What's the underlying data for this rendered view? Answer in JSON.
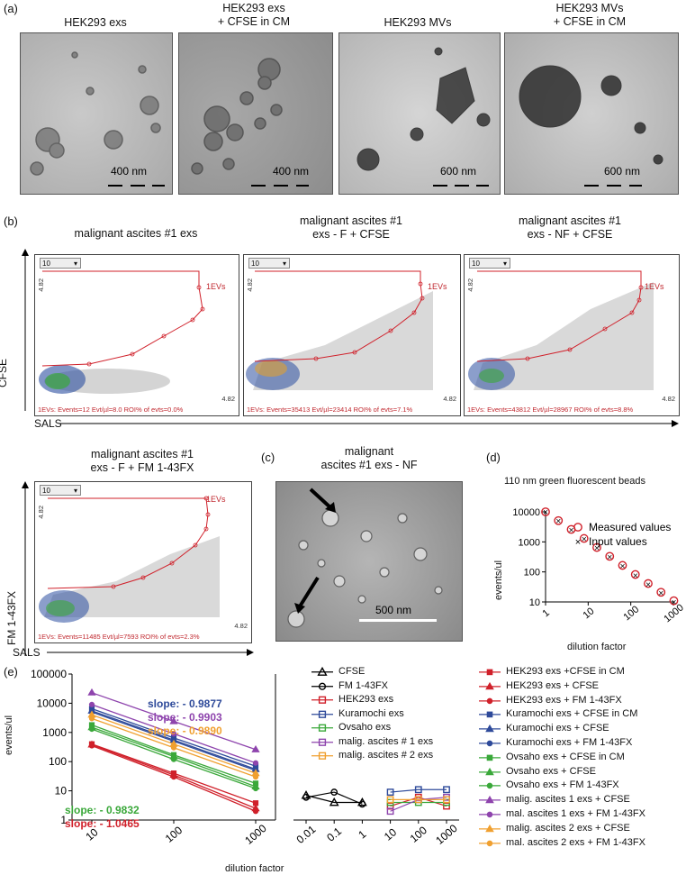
{
  "panel_a": {
    "letter": "(a)",
    "images": [
      {
        "title": [
          "HEK293 exs"
        ],
        "scale": "400 nm"
      },
      {
        "title": [
          "HEK293 exs",
          "+ CFSE in CM"
        ],
        "scale": "400 nm"
      },
      {
        "title": [
          "HEK293 MVs"
        ],
        "scale": "600 nm"
      },
      {
        "title": [
          "HEK293 MVs",
          "+ CFSE in CM"
        ],
        "scale": "600 nm"
      }
    ]
  },
  "panel_b": {
    "letter": "(b)",
    "y_axis": "CFSE",
    "x_axis": "SALS",
    "plots": [
      {
        "title": [
          "malignant ascites #1 exs"
        ],
        "dropdown": "10",
        "tick_top": "4.82",
        "tick_right": "4.82",
        "gate": "1EVs",
        "footer": "1EVs: Events=12   Evt/µl=8.0   ROI% of evts=0.0%"
      },
      {
        "title": [
          "malignant ascites #1",
          "exs - F + CFSE"
        ],
        "dropdown": "10",
        "tick_top": "4.82",
        "tick_right": "4.82",
        "gate": "1EVs",
        "footer": "1EVs: Events=35413   Evt/µl=23414   ROI% of evts=7.1%"
      },
      {
        "title": [
          "malignant ascites #1",
          "exs - NF + CFSE"
        ],
        "dropdown": "10",
        "tick_top": "4.82",
        "tick_right": "4.82",
        "gate": "1EVs",
        "footer": "1EVs: Events=43812   Evt/µl=28967   ROI% of evts=8.8%"
      },
      {
        "title": [
          "malignant ascites #1",
          "exs - F + FM 1-43FX"
        ],
        "dropdown": "10",
        "tick_top": "4.82",
        "tick_right": "4.82",
        "gate": "1EVs",
        "footer": "1EVs: Events=11485   Evt/µl=7593   ROI% of evts=2.3%",
        "y_axis": "FM 1-43FX",
        "x_axis": "SALS"
      }
    ]
  },
  "panel_c": {
    "letter": "(c)",
    "title": [
      "malignant",
      "ascites #1 exs - NF"
    ],
    "scale": "500 nm"
  },
  "panel_d": {
    "letter": "(d)",
    "title": "110 nm green fluorescent beads",
    "ylabel": "events/ul",
    "xlabel": "dilution factor",
    "legend": [
      "Measured values",
      "Input values"
    ],
    "y_ticks": [
      "10000",
      "1000",
      "100",
      "10"
    ],
    "x_ticks": [
      "1",
      "10",
      "100",
      "1000"
    ]
  },
  "panel_e": {
    "letter": "(e)",
    "ylabel": "events/ul",
    "xlabel": "dilution factor",
    "y_ticks": [
      "100000",
      "10000",
      "1000",
      "100",
      "10",
      "1"
    ],
    "left_x_ticks": [
      "10",
      "100",
      "1000"
    ],
    "right_x_ticks": [
      "0.01",
      "0.1",
      "1",
      "10",
      "100",
      "1000"
    ],
    "slopes": [
      {
        "text": "slope: - 0.9877",
        "color": "#2e4a9a"
      },
      {
        "text": "slope: - 0.9903",
        "color": "#8e44ad"
      },
      {
        "text": "slope: - 0.9890",
        "color": "#f0a030"
      },
      {
        "text": "slope: - 0.9832",
        "color": "#3aa83a"
      },
      {
        "text": "slope: - 1.0465",
        "color": "#d0202a"
      }
    ],
    "middle_legend": [
      {
        "label": "CFSE",
        "color": "#000000",
        "marker": "triangle"
      },
      {
        "label": "FM 1-43FX",
        "color": "#000000",
        "marker": "circle"
      },
      {
        "label": "HEK293 exs",
        "color": "#d0202a",
        "marker": "square"
      },
      {
        "label": "Kuramochi exs",
        "color": "#2e4a9a",
        "marker": "square"
      },
      {
        "label": "Ovsaho exs",
        "color": "#3aa83a",
        "marker": "square"
      },
      {
        "label": "malig. ascites # 1 exs",
        "color": "#8e44ad",
        "marker": "square"
      },
      {
        "label": "malig. ascites # 2 exs",
        "color": "#f0a030",
        "marker": "square"
      }
    ],
    "right_legend": [
      {
        "label": "HEK293 exs +CFSE in CM",
        "color": "#d0202a",
        "marker": "square"
      },
      {
        "label": "HEK293 exs + CFSE",
        "color": "#d0202a",
        "marker": "triangle"
      },
      {
        "label": "HEK293 exs + FM 1-43FX",
        "color": "#d0202a",
        "marker": "circle"
      },
      {
        "label": "Kuramochi exs + CFSE in CM",
        "color": "#2e4a9a",
        "marker": "square"
      },
      {
        "label": "Kuramochi exs + CFSE",
        "color": "#2e4a9a",
        "marker": "triangle"
      },
      {
        "label": "Kuramochi exs + FM 1-43FX",
        "color": "#2e4a9a",
        "marker": "circle"
      },
      {
        "label": "Ovsaho exs + CFSE in CM",
        "color": "#3aa83a",
        "marker": "square"
      },
      {
        "label": "Ovsaho exs + CFSE",
        "color": "#3aa83a",
        "marker": "triangle"
      },
      {
        "label": "Ovsaho exs + FM 1-43FX",
        "color": "#3aa83a",
        "marker": "circle"
      },
      {
        "label": "malig. ascites 1 exs + CFSE",
        "color": "#8e44ad",
        "marker": "triangle"
      },
      {
        "label": "mal. ascites 1 exs + FM 1-43FX",
        "color": "#8e44ad",
        "marker": "circle"
      },
      {
        "label": "malig. ascites 2 exs + CFSE",
        "color": "#f0a030",
        "marker": "triangle"
      },
      {
        "label": "mal. ascites 2 exs + FM 1-43FX",
        "color": "#f0a030",
        "marker": "circle"
      }
    ]
  },
  "chart_data": [
    {
      "type": "scatter",
      "title": "110 nm green fluorescent beads",
      "xlabel": "dilution factor",
      "ylabel": "events/ul",
      "x_scale": "log",
      "y_scale": "log",
      "xlim": [
        1,
        1000
      ],
      "ylim": [
        10,
        10000
      ],
      "x": [
        1,
        2,
        4,
        8,
        16,
        32,
        64,
        128,
        256,
        512,
        1024
      ],
      "series": [
        {
          "name": "Measured values",
          "values": [
            10000,
            5100,
            2600,
            1300,
            650,
            330,
            165,
            82,
            41,
            21,
            11
          ]
        },
        {
          "name": "Input values",
          "values": [
            10000,
            5000,
            2500,
            1250,
            625,
            312,
            156,
            78,
            39,
            20,
            10
          ]
        }
      ]
    },
    {
      "type": "line",
      "xlabel": "dilution factor",
      "ylabel": "events/ul",
      "x_scale": "log",
      "y_scale": "log",
      "ylim": [
        1,
        100000
      ],
      "x": [
        10,
        100,
        1000
      ],
      "series": [
        {
          "name": "HEK293 exs +CFSE in CM",
          "color": "#d0202a",
          "values": [
            400,
            40,
            3.8
          ]
        },
        {
          "name": "HEK293 exs + CFSE",
          "color": "#d0202a",
          "values": [
            380,
            35,
            2.5
          ]
        },
        {
          "name": "HEK293 exs + FM 1-43FX",
          "color": "#d0202a",
          "values": [
            350,
            30,
            2
          ]
        },
        {
          "name": "Kuramochi exs + CFSE in CM",
          "color": "#2e4a9a",
          "values": [
            6500,
            650,
            70
          ]
        },
        {
          "name": "Kuramochi exs + CFSE",
          "color": "#2e4a9a",
          "values": [
            5500,
            550,
            55
          ]
        },
        {
          "name": "Kuramochi exs + FM 1-43FX",
          "color": "#2e4a9a",
          "values": [
            5000,
            500,
            50
          ]
        },
        {
          "name": "Ovsaho exs + CFSE in CM",
          "color": "#3aa83a",
          "values": [
            1800,
            170,
            18
          ]
        },
        {
          "name": "Ovsaho exs + CFSE",
          "color": "#3aa83a",
          "values": [
            1500,
            150,
            14
          ]
        },
        {
          "name": "Ovsaho exs + FM 1-43FX",
          "color": "#3aa83a",
          "values": [
            1300,
            120,
            12
          ]
        },
        {
          "name": "malig. ascites 1 exs + CFSE",
          "color": "#8e44ad",
          "values": [
            23000,
            2400,
            260
          ]
        },
        {
          "name": "mal. ascites 1 exs + FM 1-43FX",
          "color": "#8e44ad",
          "values": [
            9000,
            900,
            90
          ]
        },
        {
          "name": "malig. ascites 2 exs + CFSE",
          "color": "#f0a030",
          "values": [
            4000,
            400,
            40
          ]
        },
        {
          "name": "mal. ascites 2 exs + FM 1-43FX",
          "color": "#f0a030",
          "values": [
            3000,
            300,
            30
          ]
        }
      ]
    },
    {
      "type": "line",
      "xlabel": "dilution factor",
      "x_scale": "log",
      "y_scale": "log",
      "ylim": [
        1,
        100000
      ],
      "x": [
        0.01,
        0.1,
        1,
        10,
        100,
        1000
      ],
      "series": [
        {
          "name": "CFSE",
          "color": "#000000",
          "values": [
            7,
            4,
            4,
            null,
            null,
            null
          ]
        },
        {
          "name": "FM 1-43FX",
          "color": "#000000",
          "values": [
            6,
            9,
            3.5,
            null,
            null,
            null
          ]
        },
        {
          "name": "HEK293 exs",
          "color": "#d0202a",
          "values": [
            null,
            null,
            null,
            3,
            6,
            3
          ]
        },
        {
          "name": "Kuramochi exs",
          "color": "#2e4a9a",
          "values": [
            null,
            null,
            null,
            9,
            11,
            11
          ]
        },
        {
          "name": "Ovsaho exs",
          "color": "#3aa83a",
          "values": [
            null,
            null,
            null,
            4,
            4,
            4
          ]
        },
        {
          "name": "malig. ascites # 1 exs",
          "color": "#8e44ad",
          "values": [
            null,
            null,
            null,
            2,
            5,
            6
          ]
        },
        {
          "name": "malig. ascites # 2 exs",
          "color": "#f0a030",
          "values": [
            null,
            null,
            null,
            5,
            5,
            5
          ]
        }
      ]
    }
  ]
}
